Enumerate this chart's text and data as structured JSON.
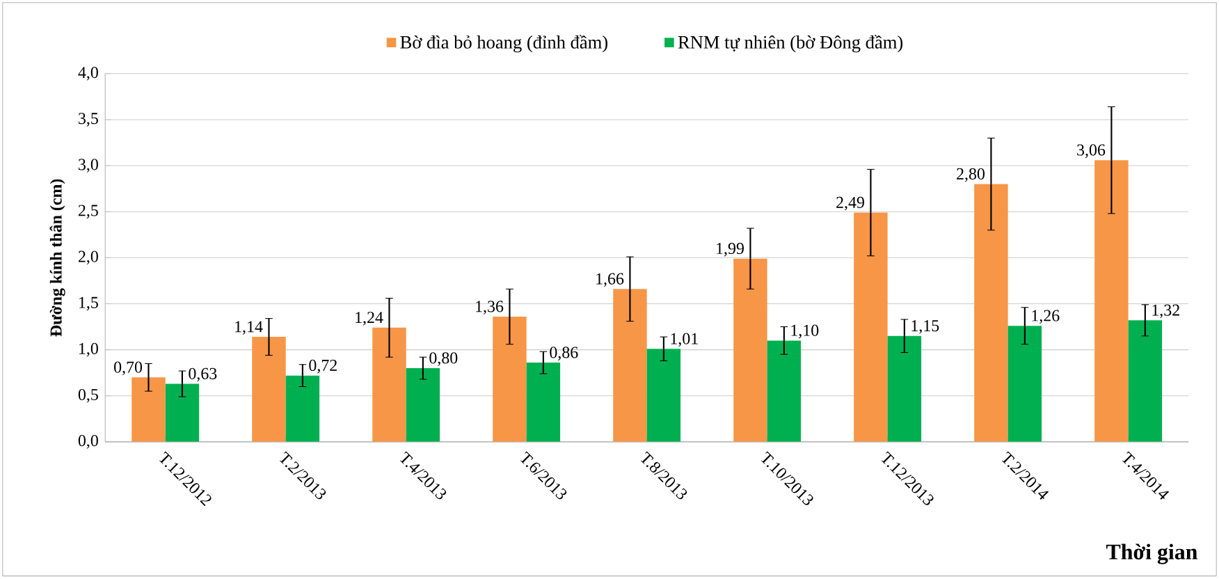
{
  "chart_data": {
    "type": "bar",
    "xlabel": "Thời gian",
    "ylabel": "Đường kính thân (cm)",
    "categories": [
      "T.12/2012",
      "T.2/2013",
      "T.4/2013",
      "T.6/2013",
      "T.8/2013",
      "T.10/2013",
      "T.12/2013",
      "T.2/2014",
      "T.4/2014"
    ],
    "series": [
      {
        "name": "Bờ đìa bỏ hoang (đỉnh đầm)",
        "color": "#f79646",
        "values": [
          0.7,
          1.14,
          1.24,
          1.36,
          1.66,
          1.99,
          2.49,
          2.8,
          3.06
        ],
        "errors": [
          0.15,
          0.2,
          0.32,
          0.3,
          0.35,
          0.33,
          0.47,
          0.5,
          0.58
        ],
        "value_labels": [
          "0,70",
          "1,14",
          "1,24",
          "1,36",
          "1,66",
          "1,99",
          "2,49",
          "2,80",
          "3,06"
        ]
      },
      {
        "name": "RNM tự nhiên (bờ Đông đầm)",
        "color": "#00b050",
        "values": [
          0.63,
          0.72,
          0.8,
          0.86,
          1.01,
          1.1,
          1.15,
          1.26,
          1.32
        ],
        "errors": [
          0.14,
          0.12,
          0.12,
          0.12,
          0.13,
          0.15,
          0.18,
          0.2,
          0.17
        ],
        "value_labels": [
          "0,63",
          "0,72",
          "0,80",
          "0,86",
          "1,01",
          "1,10",
          "1,15",
          "1,26",
          "1,32"
        ]
      }
    ],
    "ylim": [
      0,
      4
    ],
    "yticks": [
      {
        "value": 0,
        "label": "0,0"
      },
      {
        "value": 0.5,
        "label": "0,5"
      },
      {
        "value": 1,
        "label": "1,0"
      },
      {
        "value": 1.5,
        "label": "1,5"
      },
      {
        "value": 2,
        "label": "2,0"
      },
      {
        "value": 2.5,
        "label": "2,5"
      },
      {
        "value": 3,
        "label": "3,0"
      },
      {
        "value": 3.5,
        "label": "3,5"
      },
      {
        "value": 4,
        "label": "4,0"
      }
    ],
    "grid": "y",
    "legend": "top"
  }
}
